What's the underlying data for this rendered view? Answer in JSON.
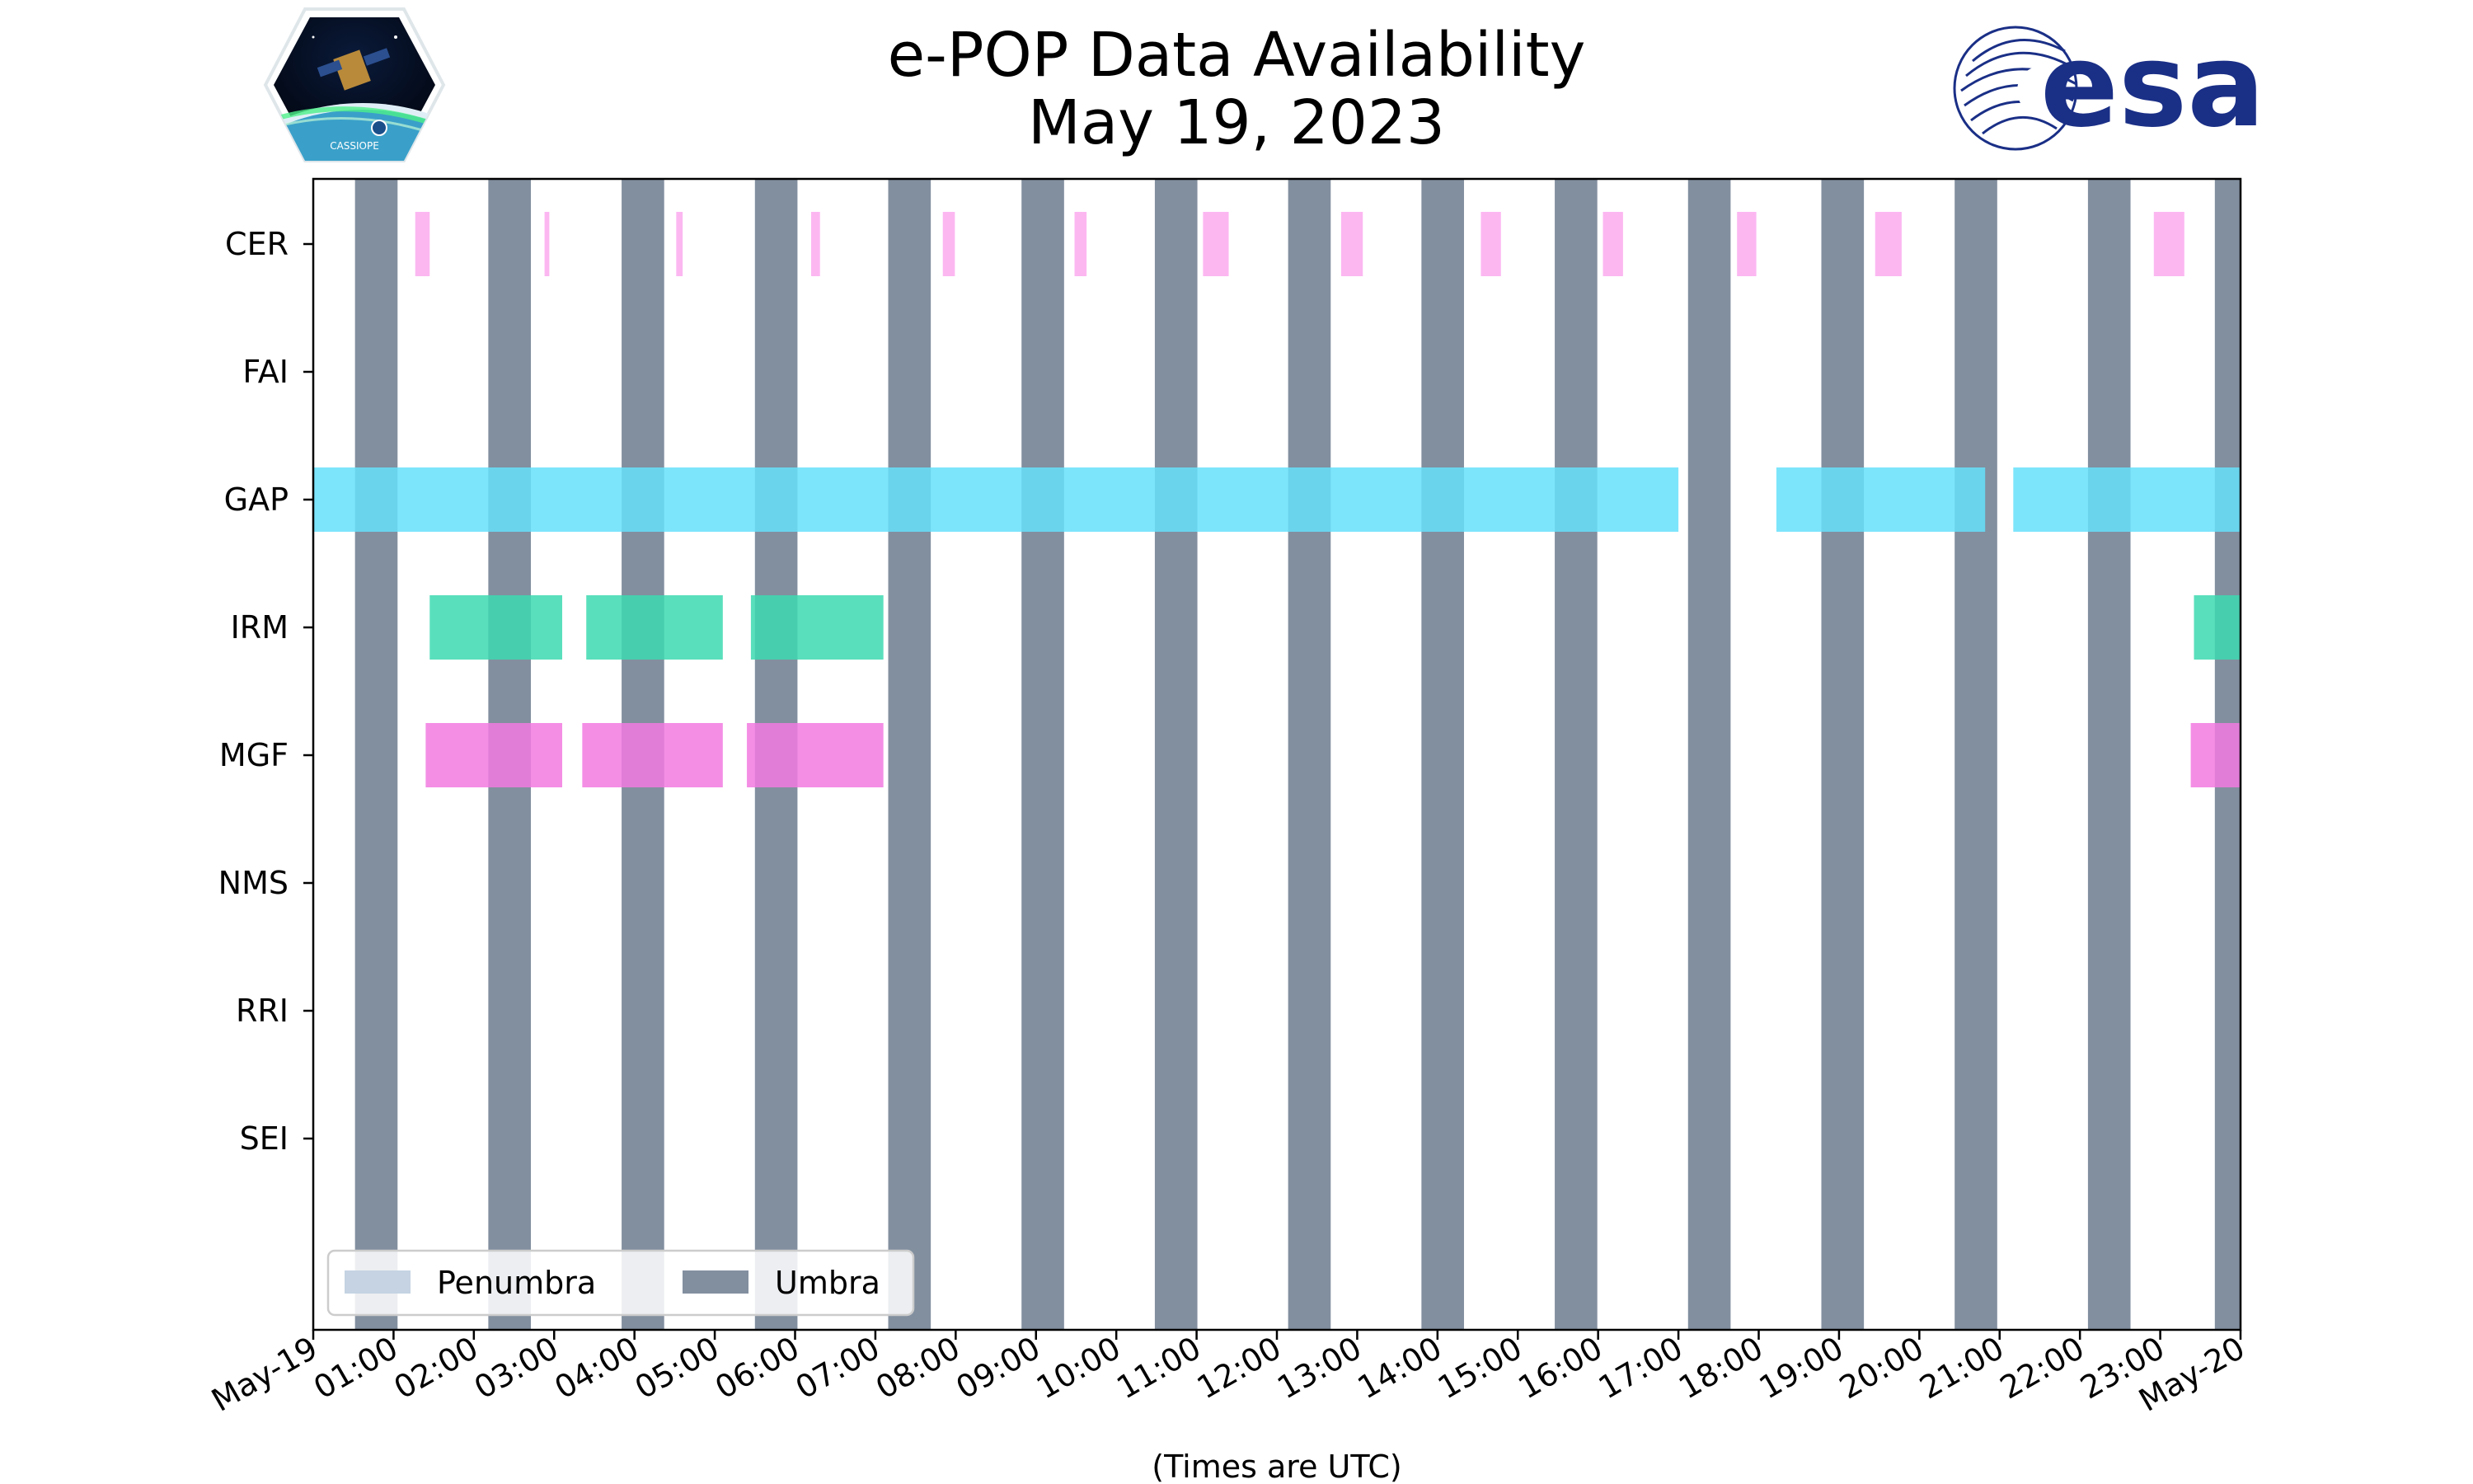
{
  "chart_data": {
    "type": "timeline",
    "title": "e-POP Data Availability",
    "subtitle": "May 19, 2023",
    "xlabel": "(Times are UTC)",
    "x_range_hours": [
      0,
      24
    ],
    "x_tick_labels": [
      "May-19",
      "01:00",
      "02:00",
      "03:00",
      "04:00",
      "05:00",
      "06:00",
      "07:00",
      "08:00",
      "09:00",
      "10:00",
      "11:00",
      "12:00",
      "13:00",
      "14:00",
      "15:00",
      "16:00",
      "17:00",
      "18:00",
      "19:00",
      "20:00",
      "21:00",
      "22:00",
      "23:00",
      "May-20"
    ],
    "instruments": [
      "CER",
      "FAI",
      "GAP",
      "IRM",
      "MGF",
      "NMS",
      "RRI",
      "SEI"
    ],
    "colors": {
      "CER": "#fcaaee",
      "GAP": "#66e0fa",
      "IRM": "#3dd9b0",
      "MGF": "#f27ae1",
      "umbra": "#828f9f",
      "penumbra": "#c5d3e3"
    },
    "umbra_intervals_hours": [
      [
        0.52,
        1.05
      ],
      [
        2.18,
        2.71
      ],
      [
        3.84,
        4.37
      ],
      [
        5.5,
        6.03
      ],
      [
        7.16,
        7.69
      ],
      [
        8.82,
        9.35
      ],
      [
        10.48,
        11.01
      ],
      [
        12.14,
        12.67
      ],
      [
        13.8,
        14.33
      ],
      [
        15.46,
        15.99
      ],
      [
        17.12,
        17.65
      ],
      [
        18.78,
        19.31
      ],
      [
        20.44,
        20.97
      ],
      [
        22.1,
        22.63
      ],
      [
        23.68,
        24.0
      ]
    ],
    "data_intervals_hours": {
      "CER": [
        [
          1.27,
          1.45
        ],
        [
          2.88,
          2.94
        ],
        [
          4.52,
          4.6
        ],
        [
          6.2,
          6.31
        ],
        [
          7.84,
          7.99
        ],
        [
          9.48,
          9.63
        ],
        [
          11.08,
          11.4
        ],
        [
          12.8,
          13.07
        ],
        [
          14.54,
          14.79
        ],
        [
          16.06,
          16.31
        ],
        [
          17.73,
          17.97
        ],
        [
          19.45,
          19.78
        ],
        [
          22.92,
          23.3
        ]
      ],
      "FAI": [],
      "GAP": [
        [
          0.0,
          17.0
        ],
        [
          18.22,
          20.82
        ],
        [
          21.17,
          24.0
        ]
      ],
      "IRM": [
        [
          1.45,
          3.1
        ],
        [
          3.4,
          5.1
        ],
        [
          5.45,
          7.1
        ],
        [
          23.42,
          24.0
        ]
      ],
      "MGF": [
        [
          1.4,
          3.1
        ],
        [
          3.35,
          5.1
        ],
        [
          5.4,
          7.1
        ],
        [
          23.38,
          24.0
        ]
      ],
      "NMS": [],
      "RRI": [],
      "SEI": []
    },
    "legend": [
      {
        "label": "Penumbra",
        "color": "#c5d3e3"
      },
      {
        "label": "Umbra",
        "color": "#828f9f"
      }
    ],
    "legend_position": "lower-left"
  },
  "logos": {
    "left_caption": "CASSIOPE",
    "right_text": "esa"
  }
}
